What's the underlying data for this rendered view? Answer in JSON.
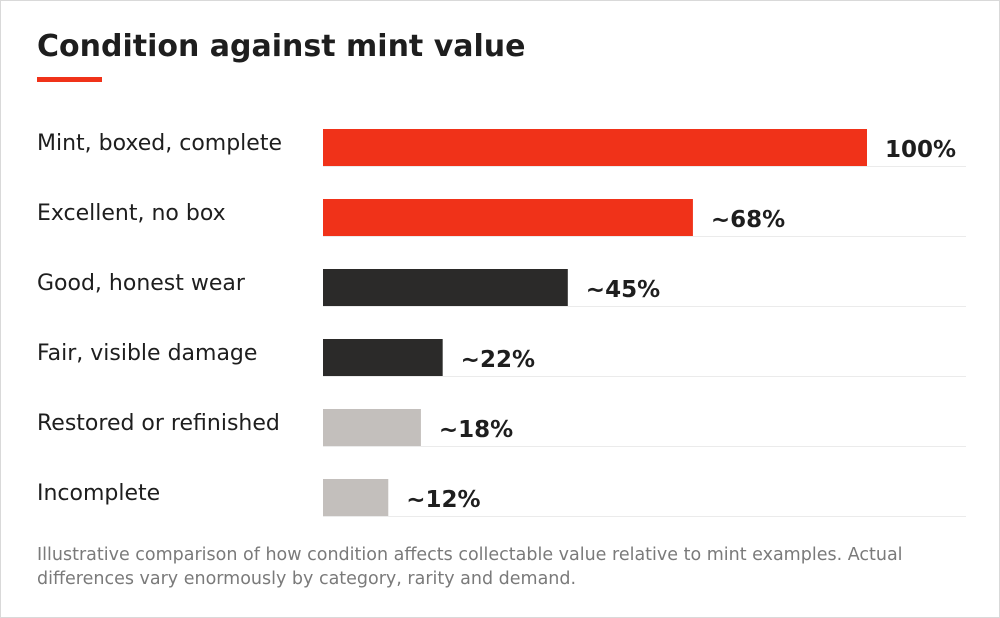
{
  "colors": {
    "accent": "#f03219",
    "dark": "#2b2a29",
    "light": "#c3bfbc"
  },
  "chart_data": {
    "type": "bar",
    "orientation": "horizontal",
    "title": "Condition against mint value",
    "categories": [
      "Mint, boxed, complete",
      "Excellent, no box",
      "Good, honest wear",
      "Fair, visible damage",
      "Restored or refinished",
      "Incomplete"
    ],
    "values": [
      100,
      68,
      45,
      22,
      18,
      12
    ],
    "data_labels": [
      "100%",
      "~68%",
      "~45%",
      "~22%",
      "~18%",
      "~12%"
    ],
    "bar_colors": [
      "#f03219",
      "#f03219",
      "#2b2a29",
      "#2b2a29",
      "#c3bfbc",
      "#c3bfbc"
    ],
    "xlim": [
      0,
      100
    ],
    "grid": false,
    "legend": "none"
  },
  "footnote": "Illustrative comparison of how condition affects collectable value relative to mint examples. Actual differences vary enormously by category, rarity and demand."
}
